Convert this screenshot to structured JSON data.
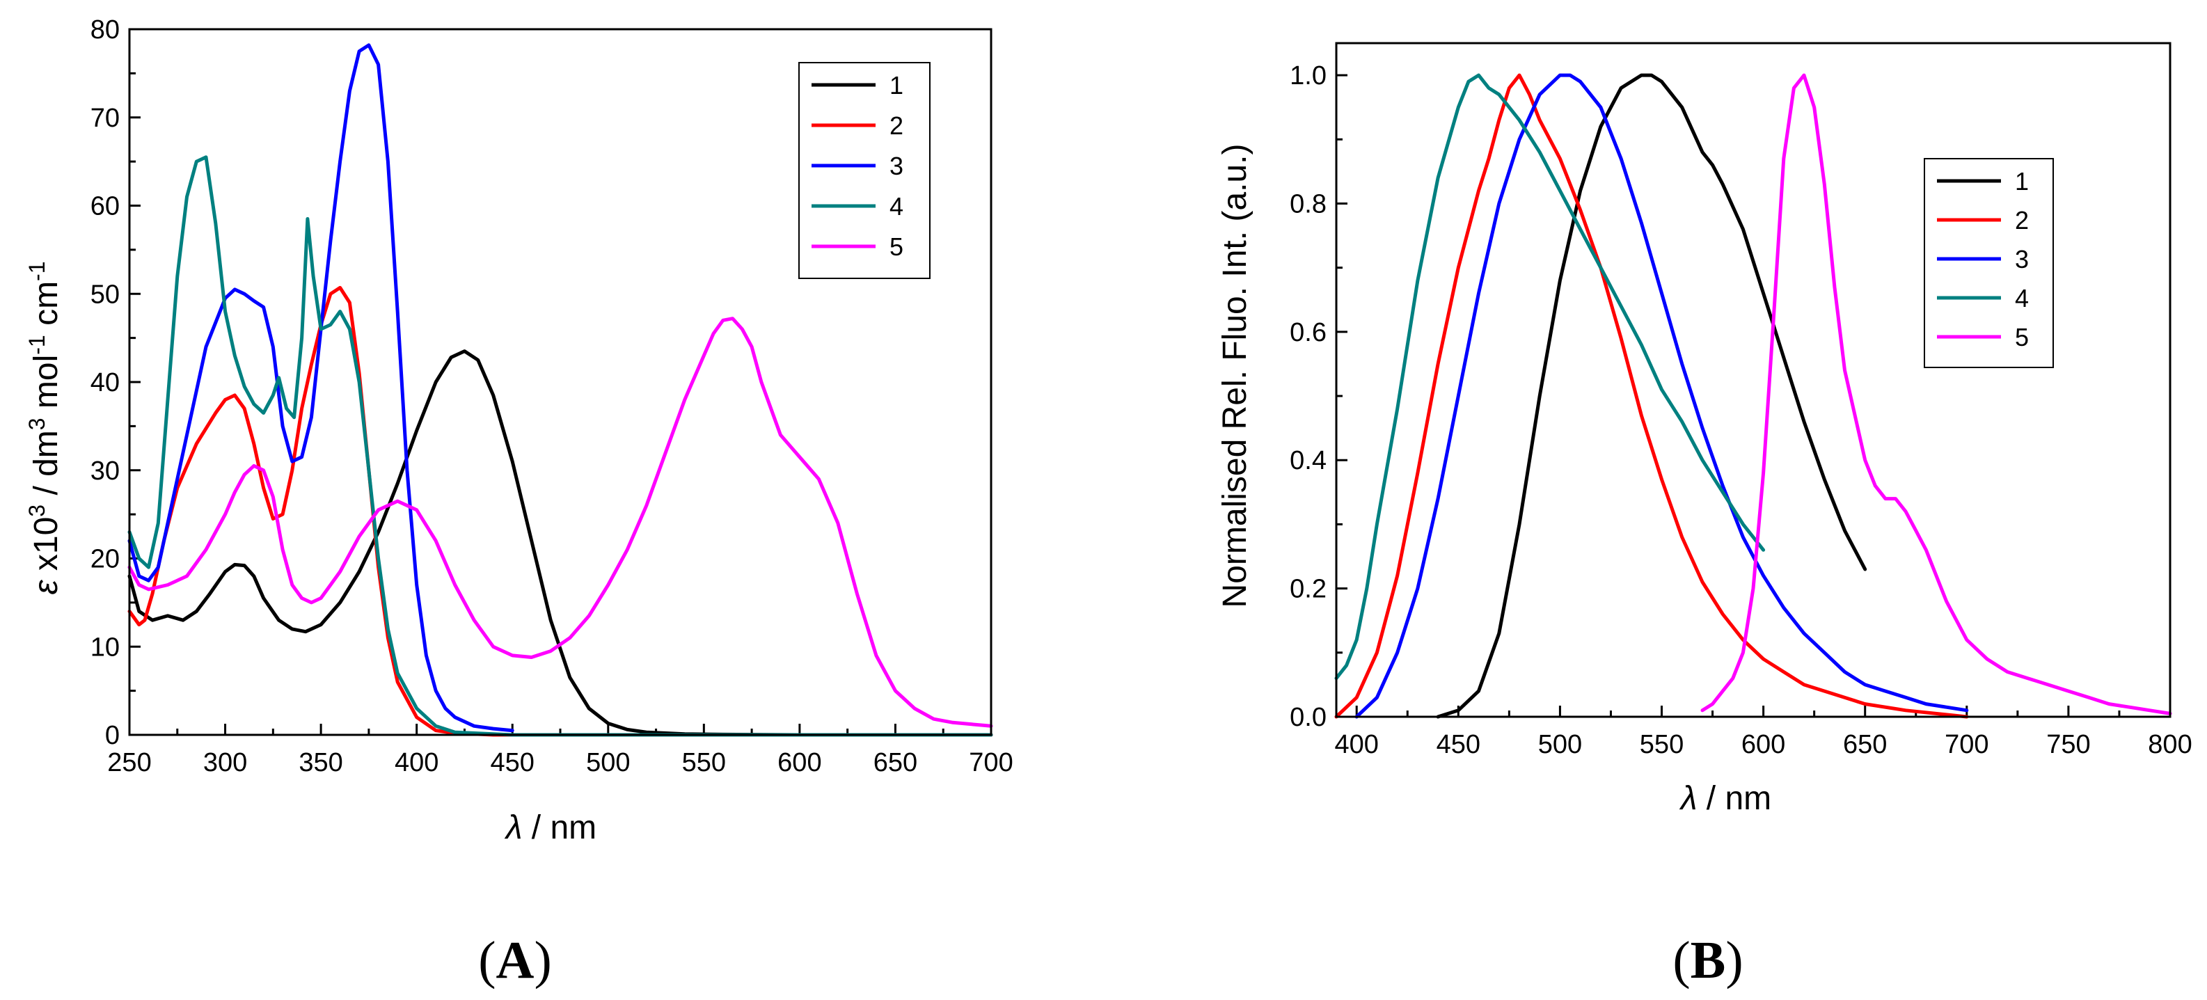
{
  "colors": {
    "1": "#000000",
    "2": "#ff0000",
    "3": "#0000ff",
    "4": "#008080",
    "5": "#ff00ff"
  },
  "panels": [
    {
      "label": "A",
      "open": "(",
      "close": ")"
    },
    {
      "label": "B",
      "open": "(",
      "close": ")"
    }
  ],
  "chart_data": [
    {
      "type": "line",
      "panel": "A",
      "title": "",
      "xlabel": "λ / nm",
      "xlabel_symbol": "λ",
      "xlabel_unit": "/ nm",
      "ylabel": "ε x10^3 / dm^3 mol^-1 cm^-1",
      "ylabel_parts": {
        "eps": "ε",
        "x10": " x10",
        "exp3": "3",
        "dm": " / dm",
        "mol": " mol",
        "expm1": "-1",
        "cm": " cm"
      },
      "xlim": [
        250,
        700
      ],
      "ylim": [
        0,
        80
      ],
      "xticks": [
        250,
        300,
        350,
        400,
        450,
        500,
        550,
        600,
        650,
        700
      ],
      "yticks": [
        0,
        10,
        20,
        30,
        40,
        50,
        60,
        70,
        80
      ],
      "legend": "top-right",
      "series": [
        {
          "name": "1",
          "x": [
            250,
            255,
            262,
            270,
            278,
            285,
            292,
            300,
            305,
            310,
            315,
            320,
            328,
            335,
            342,
            350,
            360,
            370,
            380,
            390,
            400,
            410,
            418,
            425,
            432,
            440,
            450,
            460,
            470,
            480,
            490,
            500,
            510,
            520,
            540,
            560,
            600,
            650,
            700
          ],
          "y": [
            18,
            14,
            13,
            13.5,
            13,
            14,
            16,
            18.5,
            19.3,
            19.2,
            18,
            15.5,
            13,
            12,
            11.7,
            12.5,
            15,
            18.5,
            23,
            28.5,
            34.5,
            40,
            42.8,
            43.5,
            42.5,
            38.5,
            31,
            22,
            13,
            6.5,
            3,
            1.3,
            0.6,
            0.3,
            0.1,
            0.05,
            0,
            0,
            0
          ]
        },
        {
          "name": "2",
          "x": [
            250,
            255,
            258,
            262,
            268,
            275,
            285,
            295,
            300,
            305,
            310,
            315,
            320,
            325,
            330,
            335,
            340,
            345,
            350,
            355,
            360,
            365,
            370,
            375,
            380,
            385,
            390,
            400,
            410,
            420,
            440,
            460,
            500,
            600,
            700
          ],
          "y": [
            14,
            12.5,
            13,
            16,
            22,
            28,
            33,
            36.5,
            38,
            38.5,
            37,
            33,
            28,
            24.5,
            25,
            30,
            37,
            42,
            46.5,
            50,
            50.7,
            49,
            41,
            30,
            19,
            11,
            6,
            2,
            0.5,
            0.2,
            0,
            0,
            0,
            0,
            0
          ]
        },
        {
          "name": "3",
          "x": [
            250,
            255,
            260,
            265,
            270,
            280,
            290,
            300,
            305,
            310,
            315,
            320,
            325,
            330,
            335,
            340,
            345,
            350,
            355,
            360,
            365,
            370,
            375,
            380,
            385,
            390,
            395,
            400,
            405,
            410,
            415,
            420,
            430,
            440,
            450
          ],
          "y": [
            22,
            18,
            17.5,
            19,
            24,
            34,
            44,
            49.5,
            50.5,
            50,
            49.2,
            48.5,
            44,
            35,
            31,
            31.5,
            36,
            46,
            56,
            65,
            73,
            77.5,
            78.2,
            76,
            65,
            48,
            30,
            17,
            9,
            5,
            3,
            2,
            1,
            0.7,
            0.5
          ]
        },
        {
          "name": "4",
          "x": [
            250,
            255,
            260,
            265,
            270,
            275,
            280,
            285,
            290,
            295,
            300,
            305,
            310,
            315,
            320,
            325,
            328,
            332,
            336,
            340,
            343,
            346,
            350,
            355,
            360,
            365,
            370,
            375,
            380,
            385,
            390,
            400,
            410,
            420,
            450,
            500,
            700
          ],
          "y": [
            23,
            20,
            19,
            24,
            38,
            52,
            61,
            65,
            65.5,
            58,
            48,
            43,
            39.5,
            37.5,
            36.5,
            38.5,
            40.5,
            37,
            36,
            45,
            58.5,
            52,
            46,
            46.5,
            48,
            46,
            40,
            30,
            20,
            12,
            7,
            3,
            1,
            0.3,
            0,
            0,
            0
          ]
        },
        {
          "name": "5",
          "x": [
            250,
            255,
            260,
            270,
            280,
            290,
            300,
            305,
            310,
            315,
            320,
            325,
            330,
            335,
            340,
            345,
            350,
            355,
            360,
            370,
            380,
            390,
            400,
            410,
            420,
            430,
            440,
            450,
            460,
            470,
            480,
            490,
            500,
            510,
            520,
            530,
            540,
            550,
            555,
            560,
            565,
            570,
            575,
            580,
            590,
            600,
            610,
            620,
            630,
            640,
            650,
            660,
            670,
            680,
            690,
            700
          ],
          "y": [
            19,
            17,
            16.5,
            17,
            18,
            21,
            25,
            27.5,
            29.5,
            30.5,
            30,
            27,
            21,
            17,
            15.5,
            15,
            15.5,
            17,
            18.5,
            22.5,
            25.5,
            26.5,
            25.5,
            22,
            17,
            13,
            10,
            9,
            8.8,
            9.5,
            11,
            13.5,
            17,
            21,
            26,
            32,
            38,
            43,
            45.5,
            47,
            47.2,
            46,
            44,
            40,
            34,
            31.5,
            29,
            24,
            16,
            9,
            5,
            3,
            1.8,
            1.4,
            1.2,
            1
          ]
        }
      ]
    },
    {
      "type": "line",
      "panel": "B",
      "title": "",
      "xlabel": "λ / nm",
      "xlabel_symbol": "λ",
      "xlabel_unit": "/ nm",
      "ylabel": "Normalised Rel. Fluo. Int. (a.u.)",
      "xlim": [
        390,
        800
      ],
      "ylim": [
        0.0,
        1.05
      ],
      "xticks": [
        400,
        450,
        500,
        550,
        600,
        650,
        700,
        750,
        800
      ],
      "yticks": [
        0.0,
        0.2,
        0.4,
        0.6,
        0.8,
        1.0
      ],
      "ytick_labels": [
        "0.0",
        "0.2",
        "0.4",
        "0.6",
        "0.8",
        "1.0"
      ],
      "legend": "right",
      "series": [
        {
          "name": "1",
          "x": [
            440,
            450,
            460,
            470,
            480,
            490,
            500,
            510,
            520,
            530,
            540,
            545,
            550,
            560,
            570,
            575,
            580,
            590,
            600,
            610,
            620,
            630,
            640,
            650
          ],
          "y": [
            0,
            0.01,
            0.04,
            0.13,
            0.3,
            0.5,
            0.68,
            0.82,
            0.92,
            0.98,
            1.0,
            1.0,
            0.99,
            0.95,
            0.88,
            0.86,
            0.83,
            0.76,
            0.66,
            0.56,
            0.46,
            0.37,
            0.29,
            0.23
          ]
        },
        {
          "name": "2",
          "x": [
            390,
            400,
            410,
            420,
            430,
            440,
            450,
            460,
            465,
            470,
            475,
            480,
            485,
            490,
            500,
            510,
            520,
            530,
            540,
            550,
            560,
            570,
            580,
            590,
            600,
            610,
            620,
            630,
            650,
            670,
            700
          ],
          "y": [
            0,
            0.03,
            0.1,
            0.22,
            0.38,
            0.55,
            0.7,
            0.82,
            0.87,
            0.93,
            0.98,
            1.0,
            0.97,
            0.93,
            0.87,
            0.79,
            0.7,
            0.59,
            0.47,
            0.37,
            0.28,
            0.21,
            0.16,
            0.12,
            0.09,
            0.07,
            0.05,
            0.04,
            0.02,
            0.01,
            0.0
          ]
        },
        {
          "name": "3",
          "x": [
            400,
            410,
            420,
            430,
            440,
            450,
            460,
            470,
            480,
            490,
            500,
            505,
            510,
            520,
            530,
            540,
            550,
            560,
            570,
            580,
            590,
            600,
            610,
            620,
            630,
            640,
            650,
            660,
            670,
            680,
            690,
            700
          ],
          "y": [
            0,
            0.03,
            0.1,
            0.2,
            0.34,
            0.5,
            0.66,
            0.8,
            0.9,
            0.97,
            1.0,
            1.0,
            0.99,
            0.95,
            0.87,
            0.77,
            0.66,
            0.55,
            0.45,
            0.36,
            0.28,
            0.22,
            0.17,
            0.13,
            0.1,
            0.07,
            0.05,
            0.04,
            0.03,
            0.02,
            0.015,
            0.01
          ]
        },
        {
          "name": "4",
          "x": [
            390,
            395,
            400,
            405,
            410,
            420,
            430,
            440,
            450,
            455,
            460,
            465,
            470,
            475,
            480,
            490,
            500,
            510,
            520,
            530,
            540,
            550,
            560,
            570,
            580,
            590,
            600
          ],
          "y": [
            0.06,
            0.08,
            0.12,
            0.2,
            0.3,
            0.48,
            0.68,
            0.84,
            0.95,
            0.99,
            1.0,
            0.98,
            0.97,
            0.95,
            0.93,
            0.88,
            0.82,
            0.76,
            0.7,
            0.64,
            0.58,
            0.51,
            0.46,
            0.4,
            0.35,
            0.3,
            0.26
          ]
        },
        {
          "name": "5",
          "x": [
            570,
            575,
            580,
            585,
            590,
            595,
            600,
            605,
            610,
            615,
            620,
            625,
            630,
            635,
            640,
            645,
            650,
            655,
            660,
            665,
            670,
            675,
            680,
            690,
            700,
            710,
            720,
            730,
            740,
            750,
            760,
            770,
            780,
            790,
            800
          ],
          "y": [
            0.01,
            0.02,
            0.04,
            0.06,
            0.1,
            0.2,
            0.38,
            0.62,
            0.87,
            0.98,
            1.0,
            0.95,
            0.83,
            0.67,
            0.54,
            0.47,
            0.4,
            0.36,
            0.34,
            0.34,
            0.32,
            0.29,
            0.26,
            0.18,
            0.12,
            0.09,
            0.07,
            0.06,
            0.05,
            0.04,
            0.03,
            0.02,
            0.015,
            0.01,
            0.005
          ]
        }
      ]
    }
  ]
}
